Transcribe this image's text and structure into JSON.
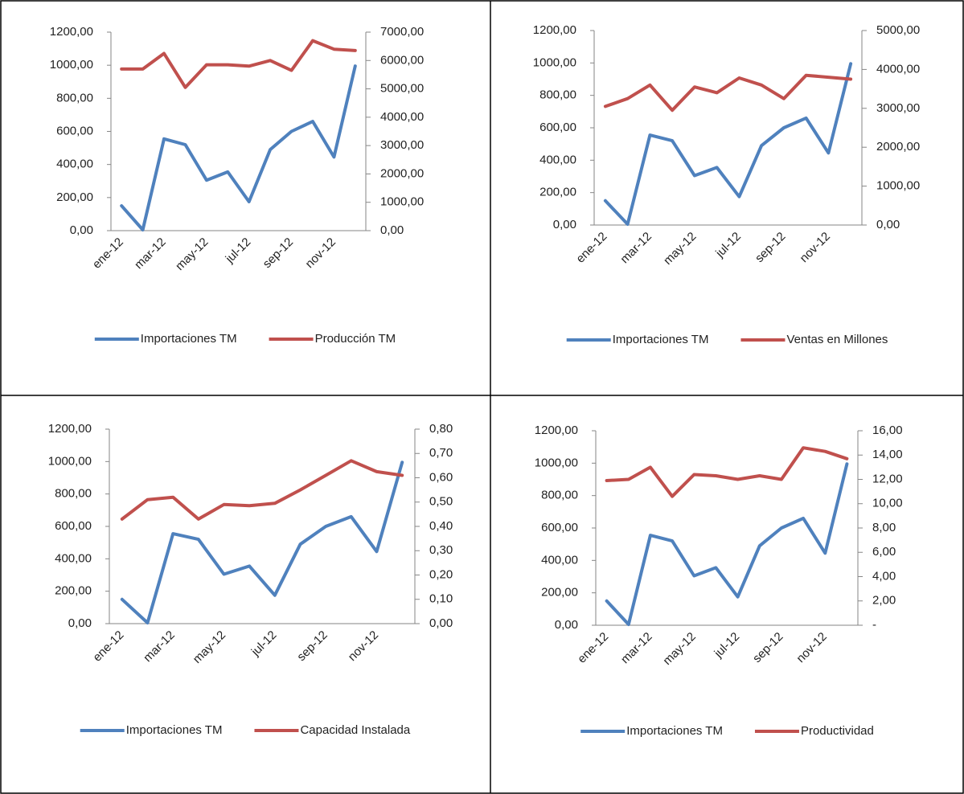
{
  "chart_data": [
    {
      "type": "line",
      "categories": [
        "ene-12",
        null,
        "mar-12",
        null,
        "may-12",
        null,
        "jul-12",
        null,
        "sep-12",
        null,
        "nov-12",
        null
      ],
      "ylim": [
        0,
        1200
      ],
      "yticks": [
        {
          "value": 0,
          "label": "0,00"
        },
        {
          "value": 200,
          "label": "200,00"
        },
        {
          "value": 400,
          "label": "400,00"
        },
        {
          "value": 600,
          "label": "600,00"
        },
        {
          "value": 800,
          "label": "800,00"
        },
        {
          "value": 1000,
          "label": "1000,00"
        },
        {
          "value": 1200,
          "label": "1200,00"
        }
      ],
      "y2lim": [
        0,
        7000
      ],
      "y2ticks": [
        {
          "value": 0,
          "label": "0,00"
        },
        {
          "value": 1000,
          "label": "1000,00"
        },
        {
          "value": 2000,
          "label": "2000,00"
        },
        {
          "value": 3000,
          "label": "3000,00"
        },
        {
          "value": 4000,
          "label": "4000,00"
        },
        {
          "value": 5000,
          "label": "5000,00"
        },
        {
          "value": 6000,
          "label": "6000,00"
        },
        {
          "value": 7000,
          "label": "7000,00"
        }
      ],
      "legend": "bottom",
      "series": [
        {
          "name": "Importaciones TM",
          "color": "#4f81bd",
          "values": [
            150,
            5,
            555,
            520,
            305,
            355,
            175,
            490,
            600,
            660,
            445,
            995
          ]
        },
        {
          "name": "Producción TM",
          "color": "#c0504d",
          "axis": "y2",
          "values": [
            5700,
            5700,
            6250,
            5050,
            5850,
            5850,
            5800,
            6000,
            5650,
            6700,
            6400,
            6350
          ]
        }
      ]
    },
    {
      "type": "line",
      "categories": [
        "ene-12",
        null,
        "mar-12",
        null,
        "may-12",
        null,
        "jul-12",
        null,
        "sep-12",
        null,
        "nov-12",
        null
      ],
      "ylim": [
        0,
        1200
      ],
      "yticks": [
        {
          "value": 0,
          "label": "0,00"
        },
        {
          "value": 200,
          "label": "200,00"
        },
        {
          "value": 400,
          "label": "400,00"
        },
        {
          "value": 600,
          "label": "600,00"
        },
        {
          "value": 800,
          "label": "800,00"
        },
        {
          "value": 1000,
          "label": "1000,00"
        },
        {
          "value": 1200,
          "label": "1200,00"
        }
      ],
      "y2lim": [
        0,
        5000
      ],
      "y2ticks": [
        {
          "value": 0,
          "label": "0,00"
        },
        {
          "value": 1000,
          "label": "1000,00"
        },
        {
          "value": 2000,
          "label": "2000,00"
        },
        {
          "value": 3000,
          "label": "3000,00"
        },
        {
          "value": 4000,
          "label": "4000,00"
        },
        {
          "value": 5000,
          "label": "5000,00"
        }
      ],
      "legend": "bottom",
      "series": [
        {
          "name": "Importaciones TM",
          "color": "#4f81bd",
          "values": [
            150,
            5,
            555,
            520,
            305,
            355,
            175,
            490,
            600,
            660,
            445,
            995
          ]
        },
        {
          "name": "Ventas en Millones",
          "color": "#c0504d",
          "axis": "y2",
          "values": [
            3050,
            3250,
            3600,
            2950,
            3550,
            3400,
            3780,
            3600,
            3250,
            3850,
            3800,
            3750
          ]
        }
      ]
    },
    {
      "type": "line",
      "categories": [
        "ene-12",
        null,
        "mar-12",
        null,
        "may-12",
        null,
        "jul-12",
        null,
        "sep-12",
        null,
        "nov-12",
        null
      ],
      "ylim": [
        0,
        1200
      ],
      "yticks": [
        {
          "value": 0,
          "label": "0,00"
        },
        {
          "value": 200,
          "label": "200,00"
        },
        {
          "value": 400,
          "label": "400,00"
        },
        {
          "value": 600,
          "label": "600,00"
        },
        {
          "value": 800,
          "label": "800,00"
        },
        {
          "value": 1000,
          "label": "1000,00"
        },
        {
          "value": 1200,
          "label": "1200,00"
        }
      ],
      "y2lim": [
        0,
        0.8
      ],
      "y2ticks": [
        {
          "value": 0,
          "label": "0,00"
        },
        {
          "value": 0.1,
          "label": "0,10"
        },
        {
          "value": 0.2,
          "label": "0,20"
        },
        {
          "value": 0.3,
          "label": "0,30"
        },
        {
          "value": 0.4,
          "label": "0,40"
        },
        {
          "value": 0.5,
          "label": "0,50"
        },
        {
          "value": 0.6,
          "label": "0,60"
        },
        {
          "value": 0.7,
          "label": "0,70"
        },
        {
          "value": 0.8,
          "label": "0,80"
        }
      ],
      "legend": "bottom",
      "series": [
        {
          "name": "Importaciones TM",
          "color": "#4f81bd",
          "values": [
            150,
            5,
            555,
            520,
            305,
            355,
            175,
            490,
            600,
            660,
            445,
            995
          ]
        },
        {
          "name": "Capacidad Instalada",
          "color": "#c0504d",
          "axis": "y2",
          "values": [
            0.43,
            0.51,
            0.52,
            0.43,
            0.49,
            0.485,
            0.495,
            0.55,
            0.61,
            0.67,
            0.625,
            0.61
          ]
        }
      ]
    },
    {
      "type": "line",
      "categories": [
        "ene-12",
        null,
        "mar-12",
        null,
        "may-12",
        null,
        "jul-12",
        null,
        "sep-12",
        null,
        "nov-12",
        null
      ],
      "ylim": [
        0,
        1200
      ],
      "yticks": [
        {
          "value": 0,
          "label": "0,00"
        },
        {
          "value": 200,
          "label": "200,00"
        },
        {
          "value": 400,
          "label": "400,00"
        },
        {
          "value": 600,
          "label": "600,00"
        },
        {
          "value": 800,
          "label": "800,00"
        },
        {
          "value": 1000,
          "label": "1000,00"
        },
        {
          "value": 1200,
          "label": "1200,00"
        }
      ],
      "y2lim": [
        0,
        16
      ],
      "y2ticks": [
        {
          "value": 0,
          "label": "-"
        },
        {
          "value": 2,
          "label": "2,00"
        },
        {
          "value": 4,
          "label": "4,00"
        },
        {
          "value": 6,
          "label": "6,00"
        },
        {
          "value": 8,
          "label": "8,00"
        },
        {
          "value": 10,
          "label": "10,00"
        },
        {
          "value": 12,
          "label": "12,00"
        },
        {
          "value": 14,
          "label": "14,00"
        },
        {
          "value": 16,
          "label": "16,00"
        }
      ],
      "legend": "bottom",
      "series": [
        {
          "name": "Importaciones TM",
          "color": "#4f81bd",
          "values": [
            150,
            5,
            555,
            520,
            305,
            355,
            175,
            490,
            600,
            660,
            445,
            995
          ]
        },
        {
          "name": "Productividad",
          "color": "#c0504d",
          "axis": "y2",
          "values": [
            11.9,
            12.0,
            13.0,
            10.6,
            12.4,
            12.3,
            12.0,
            12.3,
            12.0,
            14.6,
            14.3,
            13.7
          ]
        }
      ]
    }
  ]
}
